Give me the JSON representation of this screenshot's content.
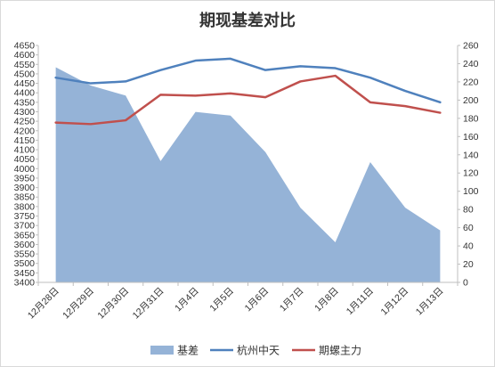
{
  "chart_data": {
    "type": "line",
    "title": "期现基差对比",
    "categories": [
      "12月28日",
      "12月29日",
      "12月30日",
      "12月31日",
      "1月4日",
      "1月5日",
      "1月6日",
      "1月7日",
      "1月8日",
      "1月11日",
      "1月12日",
      "1月13日"
    ],
    "left_axis": {
      "min": 3400,
      "max": 4650,
      "step": 50
    },
    "right_axis": {
      "min": 0,
      "max": 260,
      "step": 20
    },
    "series": [
      {
        "name": "基差",
        "type": "area",
        "axis": "right",
        "color": "#95B3D7",
        "values": [
          236,
          216,
          205,
          133,
          187,
          183,
          143,
          82,
          44,
          132,
          82,
          57
        ]
      },
      {
        "name": "杭州中天",
        "type": "line",
        "axis": "left",
        "color": "#4F81BD",
        "values": [
          4480,
          4450,
          4460,
          4520,
          4570,
          4580,
          4520,
          4540,
          4530,
          4480,
          4410,
          4350
        ]
      },
      {
        "name": "期螺主力",
        "type": "line",
        "axis": "left",
        "color": "#C0504D",
        "values": [
          4243,
          4235,
          4255,
          4390,
          4385,
          4397,
          4377,
          4460,
          4490,
          4350,
          4330,
          4295
        ]
      }
    ],
    "grid": false,
    "legend": "bottom"
  }
}
